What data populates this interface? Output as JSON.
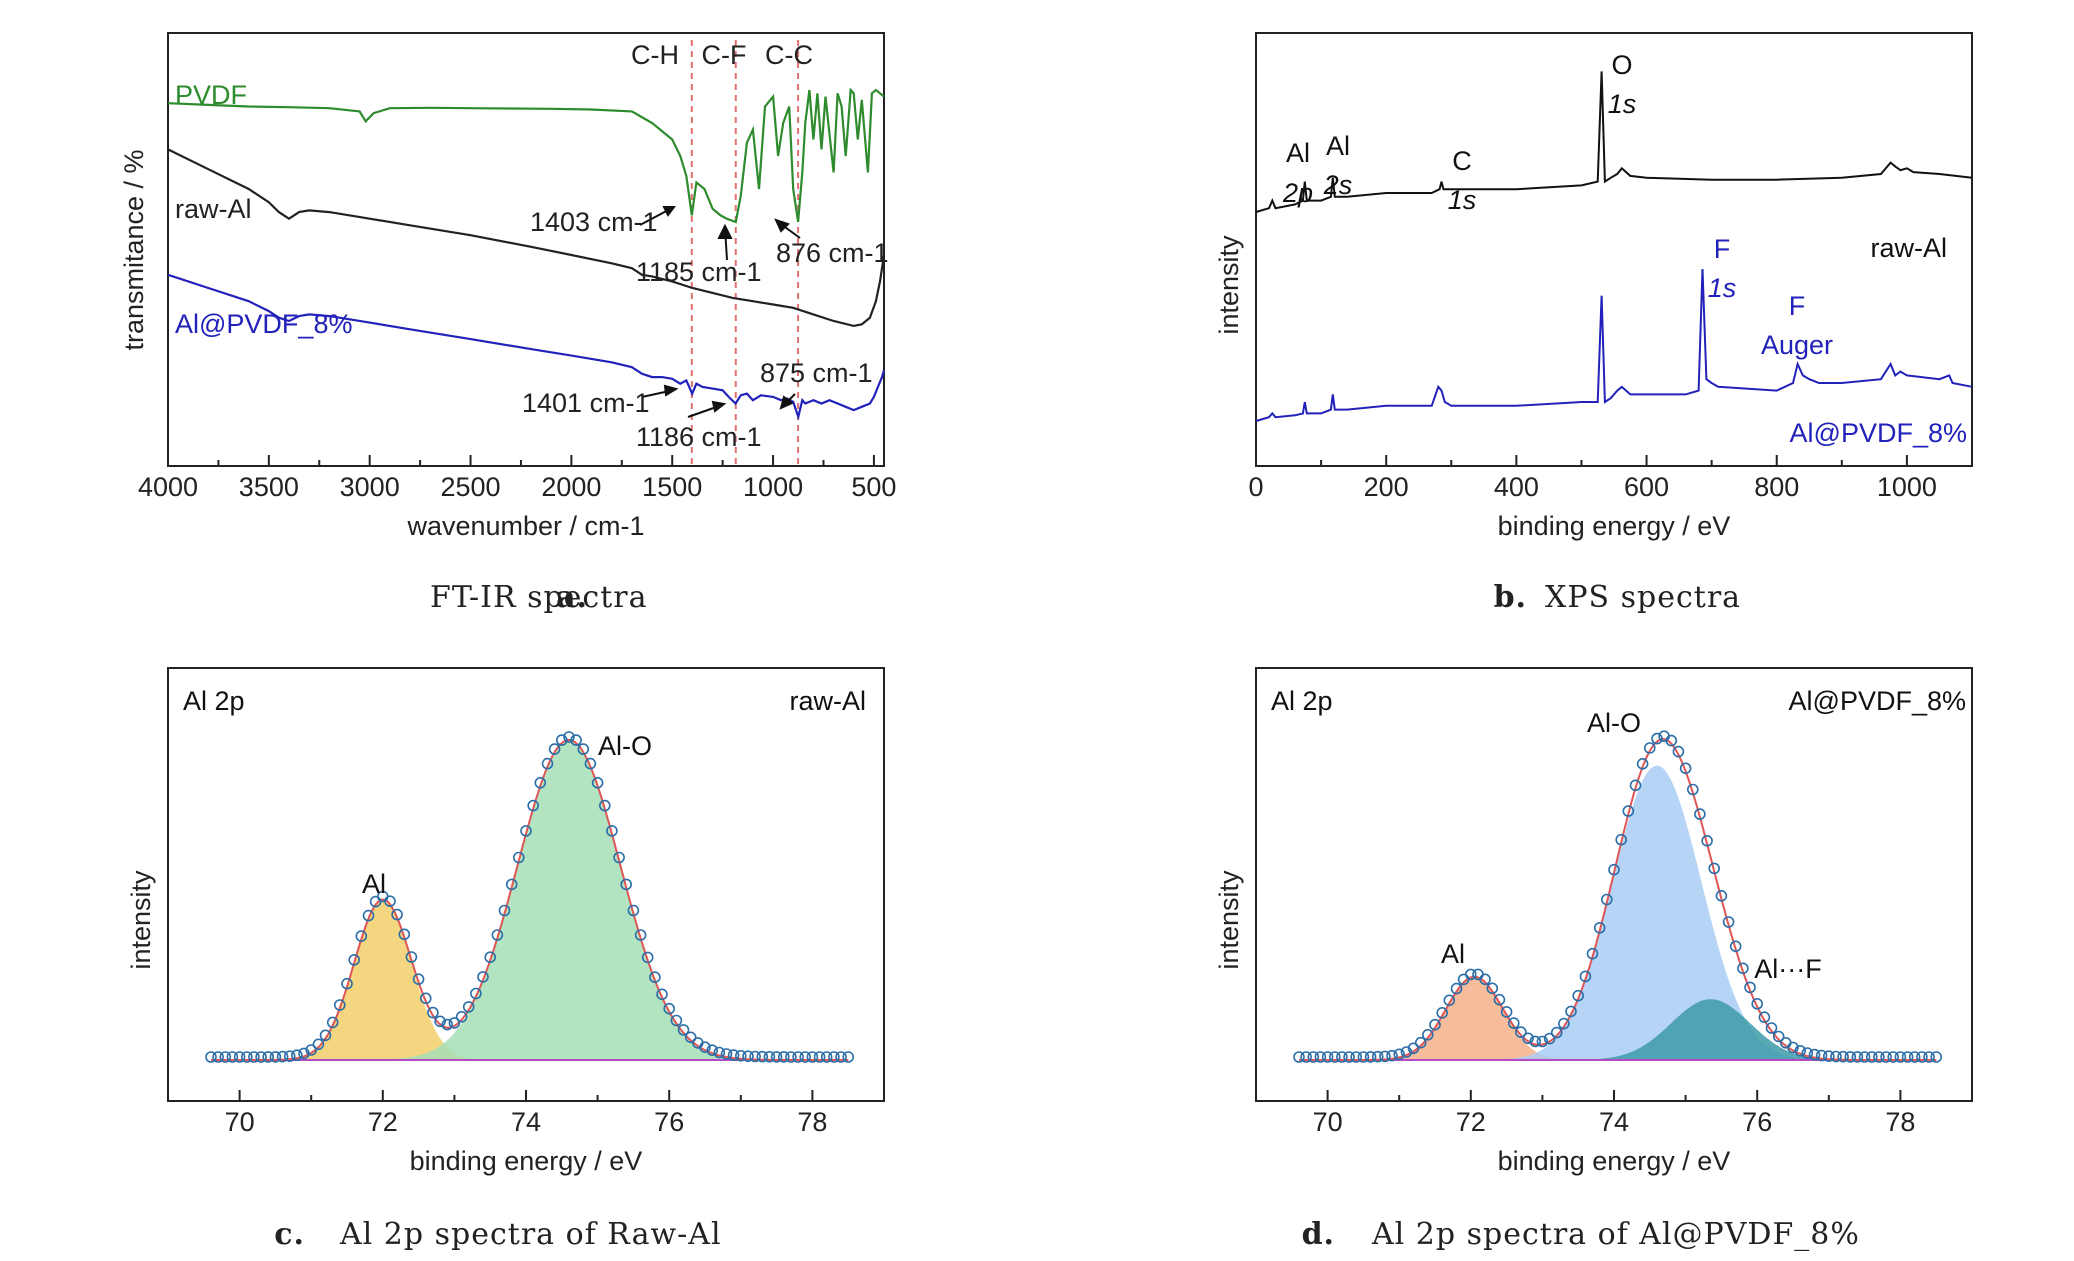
{
  "chart_data": [
    {
      "type": "line",
      "caption": {
        "letter": "a.",
        "text": "FT-IR spectra"
      },
      "xlabel": "wavenumber / cm-1",
      "ylabel": "transmitance / %",
      "xlim": [
        4000,
        450
      ],
      "x_reversed": true,
      "xticks": [
        4000,
        3500,
        3000,
        2500,
        2000,
        1500,
        1000,
        500
      ],
      "y_ticks_shown": false,
      "series": [
        {
          "name": "PVDF",
          "color": "#2e8b2e",
          "x": [
            4000,
            3800,
            3600,
            3400,
            3200,
            3050,
            3020,
            2980,
            2900,
            2700,
            2500,
            2300,
            2100,
            1900,
            1700,
            1600,
            1500,
            1460,
            1430,
            1403,
            1380,
            1340,
            1300,
            1260,
            1230,
            1185,
            1160,
            1130,
            1100,
            1070,
            1040,
            1000,
            975,
            950,
            920,
            900,
            876,
            855,
            840,
            820,
            800,
            780,
            760,
            740,
            700,
            680,
            660,
            640,
            615,
            600,
            580,
            560,
            530,
            510,
            490,
            470,
            450
          ],
          "y": [
            0.96,
            0.955,
            0.95,
            0.948,
            0.945,
            0.935,
            0.905,
            0.93,
            0.945,
            0.946,
            0.945,
            0.944,
            0.943,
            0.941,
            0.935,
            0.9,
            0.85,
            0.8,
            0.74,
            0.62,
            0.72,
            0.7,
            0.64,
            0.62,
            0.61,
            0.6,
            0.68,
            0.84,
            0.88,
            0.7,
            0.95,
            0.98,
            0.8,
            0.9,
            0.95,
            0.7,
            0.6,
            0.75,
            0.9,
            1.0,
            0.85,
            0.99,
            0.82,
            0.98,
            0.75,
            0.99,
            0.95,
            0.8,
            1.0,
            0.99,
            0.85,
            0.97,
            0.75,
            0.99,
            1.0,
            0.99,
            0.98
          ]
        },
        {
          "name": "raw-Al",
          "color": "#222222",
          "x": [
            4000,
            3800,
            3600,
            3500,
            3450,
            3400,
            3350,
            3300,
            3200,
            3000,
            2800,
            2500,
            2200,
            2000,
            1800,
            1700,
            1650,
            1600,
            1500,
            1400,
            1300,
            1200,
            1100,
            1000,
            900,
            800,
            700,
            600,
            560,
            520,
            490,
            470,
            450
          ],
          "y": [
            0.82,
            0.76,
            0.7,
            0.66,
            0.63,
            0.61,
            0.63,
            0.635,
            0.63,
            0.61,
            0.59,
            0.56,
            0.525,
            0.5,
            0.475,
            0.46,
            0.44,
            0.435,
            0.42,
            0.4,
            0.385,
            0.37,
            0.36,
            0.35,
            0.34,
            0.32,
            0.3,
            0.285,
            0.29,
            0.31,
            0.36,
            0.42,
            0.5
          ]
        },
        {
          "name": "Al@PVDF_8%",
          "color": "#2222bb",
          "x": [
            4000,
            3800,
            3600,
            3500,
            3450,
            3400,
            3350,
            3300,
            3200,
            3000,
            2800,
            2500,
            2200,
            2000,
            1800,
            1700,
            1650,
            1600,
            1550,
            1500,
            1460,
            1430,
            1401,
            1380,
            1350,
            1300,
            1250,
            1220,
            1186,
            1160,
            1130,
            1100,
            1060,
            1000,
            960,
            930,
            900,
            875,
            855,
            840,
            800,
            760,
            720,
            680,
            640,
            600,
            560,
            520,
            500,
            480,
            460,
            450
          ],
          "y": [
            0.44,
            0.4,
            0.36,
            0.33,
            0.31,
            0.3,
            0.315,
            0.32,
            0.315,
            0.295,
            0.275,
            0.245,
            0.215,
            0.195,
            0.175,
            0.16,
            0.14,
            0.13,
            0.13,
            0.125,
            0.11,
            0.12,
            0.08,
            0.11,
            0.1,
            0.095,
            0.09,
            0.07,
            0.05,
            0.075,
            0.08,
            0.06,
            0.075,
            0.07,
            0.06,
            0.065,
            0.055,
            0.01,
            0.06,
            0.05,
            0.06,
            0.05,
            0.06,
            0.05,
            0.04,
            0.03,
            0.04,
            0.05,
            0.07,
            0.1,
            0.13,
            0.15
          ]
        }
      ],
      "annotations": [
        {
          "text": "C-H",
          "x": 1403,
          "kind": "header"
        },
        {
          "text": "C-F",
          "x": 1185,
          "kind": "header"
        },
        {
          "text": "C-C",
          "x": 876,
          "kind": "header"
        },
        {
          "text": "1403 cm-1"
        },
        {
          "text": "1185 cm-1"
        },
        {
          "text": "876 cm-1"
        },
        {
          "text": "1401 cm-1"
        },
        {
          "text": "1186 cm-1"
        },
        {
          "text": "875 cm-1"
        }
      ]
    },
    {
      "type": "line",
      "caption": {
        "letter": "b.",
        "text": "XPS spectra"
      },
      "xlabel": "binding energy / eV",
      "ylabel": "intensity",
      "xlim": [
        0,
        1100
      ],
      "xticks": [
        0,
        200,
        400,
        600,
        800,
        1000
      ],
      "y_ticks_shown": false,
      "series": [
        {
          "name": "raw-Al",
          "color": "#111111",
          "x": [
            0,
            20,
            25,
            30,
            60,
            72,
            75,
            78,
            100,
            115,
            118,
            121,
            140,
            200,
            270,
            282,
            285,
            288,
            300,
            400,
            500,
            525,
            531,
            536,
            545,
            555,
            562,
            575,
            600,
            700,
            800,
            900,
            960,
            975,
            982,
            990,
            1000,
            1010,
            1050,
            1100
          ],
          "y": [
            0.6,
            0.61,
            0.63,
            0.61,
            0.62,
            0.63,
            0.68,
            0.63,
            0.63,
            0.64,
            0.69,
            0.64,
            0.64,
            0.65,
            0.65,
            0.66,
            0.68,
            0.66,
            0.66,
            0.66,
            0.67,
            0.68,
            0.97,
            0.68,
            0.69,
            0.7,
            0.715,
            0.695,
            0.69,
            0.685,
            0.685,
            0.69,
            0.7,
            0.73,
            0.72,
            0.71,
            0.715,
            0.705,
            0.7,
            0.69
          ]
        },
        {
          "name": "Al@PVDF_8%",
          "color": "#2222bb",
          "x": [
            0,
            20,
            25,
            30,
            60,
            72,
            75,
            78,
            100,
            115,
            118,
            121,
            140,
            200,
            270,
            280,
            285,
            290,
            300,
            400,
            500,
            525,
            531,
            536,
            545,
            555,
            562,
            575,
            600,
            660,
            680,
            686,
            692,
            700,
            710,
            800,
            825,
            832,
            840,
            850,
            865,
            900,
            960,
            975,
            982,
            990,
            1000,
            1050,
            1065,
            1070,
            1100
          ],
          "y": [
            0.05,
            0.06,
            0.07,
            0.06,
            0.065,
            0.07,
            0.1,
            0.07,
            0.07,
            0.08,
            0.12,
            0.08,
            0.08,
            0.09,
            0.09,
            0.14,
            0.13,
            0.1,
            0.09,
            0.09,
            0.1,
            0.1,
            0.38,
            0.1,
            0.11,
            0.13,
            0.14,
            0.12,
            0.12,
            0.12,
            0.13,
            0.45,
            0.16,
            0.15,
            0.14,
            0.13,
            0.15,
            0.2,
            0.17,
            0.16,
            0.15,
            0.15,
            0.16,
            0.2,
            0.17,
            0.18,
            0.17,
            0.16,
            0.17,
            0.15,
            0.14
          ]
        }
      ],
      "annotations": [
        {
          "text_lines": [
            "Al",
            "2p"
          ]
        },
        {
          "text_lines": [
            "Al",
            "2s"
          ]
        },
        {
          "text_lines": [
            "C",
            "1s"
          ]
        },
        {
          "text_lines": [
            "O",
            "1s"
          ]
        },
        {
          "text_lines": [
            "F",
            "1s"
          ]
        },
        {
          "text_lines": [
            "F",
            "Auger"
          ]
        },
        {
          "text": "raw-Al"
        },
        {
          "text": "Al@PVDF_8%"
        }
      ]
    },
    {
      "type": "area",
      "caption": {
        "letter": "c.",
        "text": "Al 2p spectra of Raw-Al"
      },
      "xlabel": "binding energy / eV",
      "ylabel": "intensity",
      "panel_label": "Al 2p",
      "sample_label": "raw-Al",
      "xlim": [
        69,
        79
      ],
      "xticks": [
        70,
        72,
        74,
        76,
        78
      ],
      "ylim": [
        0,
        1.08
      ],
      "baseline": 0.0,
      "components": [
        {
          "name": "Al",
          "center": 72.0,
          "height": 0.5,
          "sigma": 0.4,
          "color": "#f2cf6b"
        },
        {
          "name": "Al-O",
          "center": 74.6,
          "height": 1.0,
          "sigma": 0.72,
          "color": "#a6dfb7"
        }
      ],
      "data_points": {
        "x_start": 69.6,
        "x_end": 78.5,
        "step": 0.1,
        "color": "#2b6ea8"
      },
      "fit_color": "#e05555",
      "baseline_color": "#b44bc4"
    },
    {
      "type": "area",
      "caption": {
        "letter": "d.",
        "text": "Al 2p spectra of Al@PVDF_8%"
      },
      "xlabel": "binding energy / eV",
      "ylabel": "intensity",
      "panel_label": "Al 2p",
      "sample_label": "Al@PVDF_8%",
      "xlim": [
        69,
        79
      ],
      "xticks": [
        70,
        72,
        74,
        76,
        78
      ],
      "ylim": [
        0,
        1.08
      ],
      "baseline": 0.0,
      "components": [
        {
          "name": "Al",
          "center": 72.05,
          "height": 0.26,
          "sigma": 0.4,
          "color": "#f5b08a"
        },
        {
          "name": "Al-O",
          "center": 74.6,
          "height": 0.92,
          "sigma": 0.62,
          "color": "#a9cdf5"
        },
        {
          "name": "Al···F",
          "center": 75.35,
          "height": 0.19,
          "sigma": 0.55,
          "color": "#3d9aa8"
        }
      ],
      "data_points": {
        "x_start": 69.6,
        "x_end": 78.5,
        "step": 0.1,
        "color": "#2b6ea8"
      },
      "fit_color": "#e05555",
      "baseline_color": "#b44bc4"
    }
  ]
}
